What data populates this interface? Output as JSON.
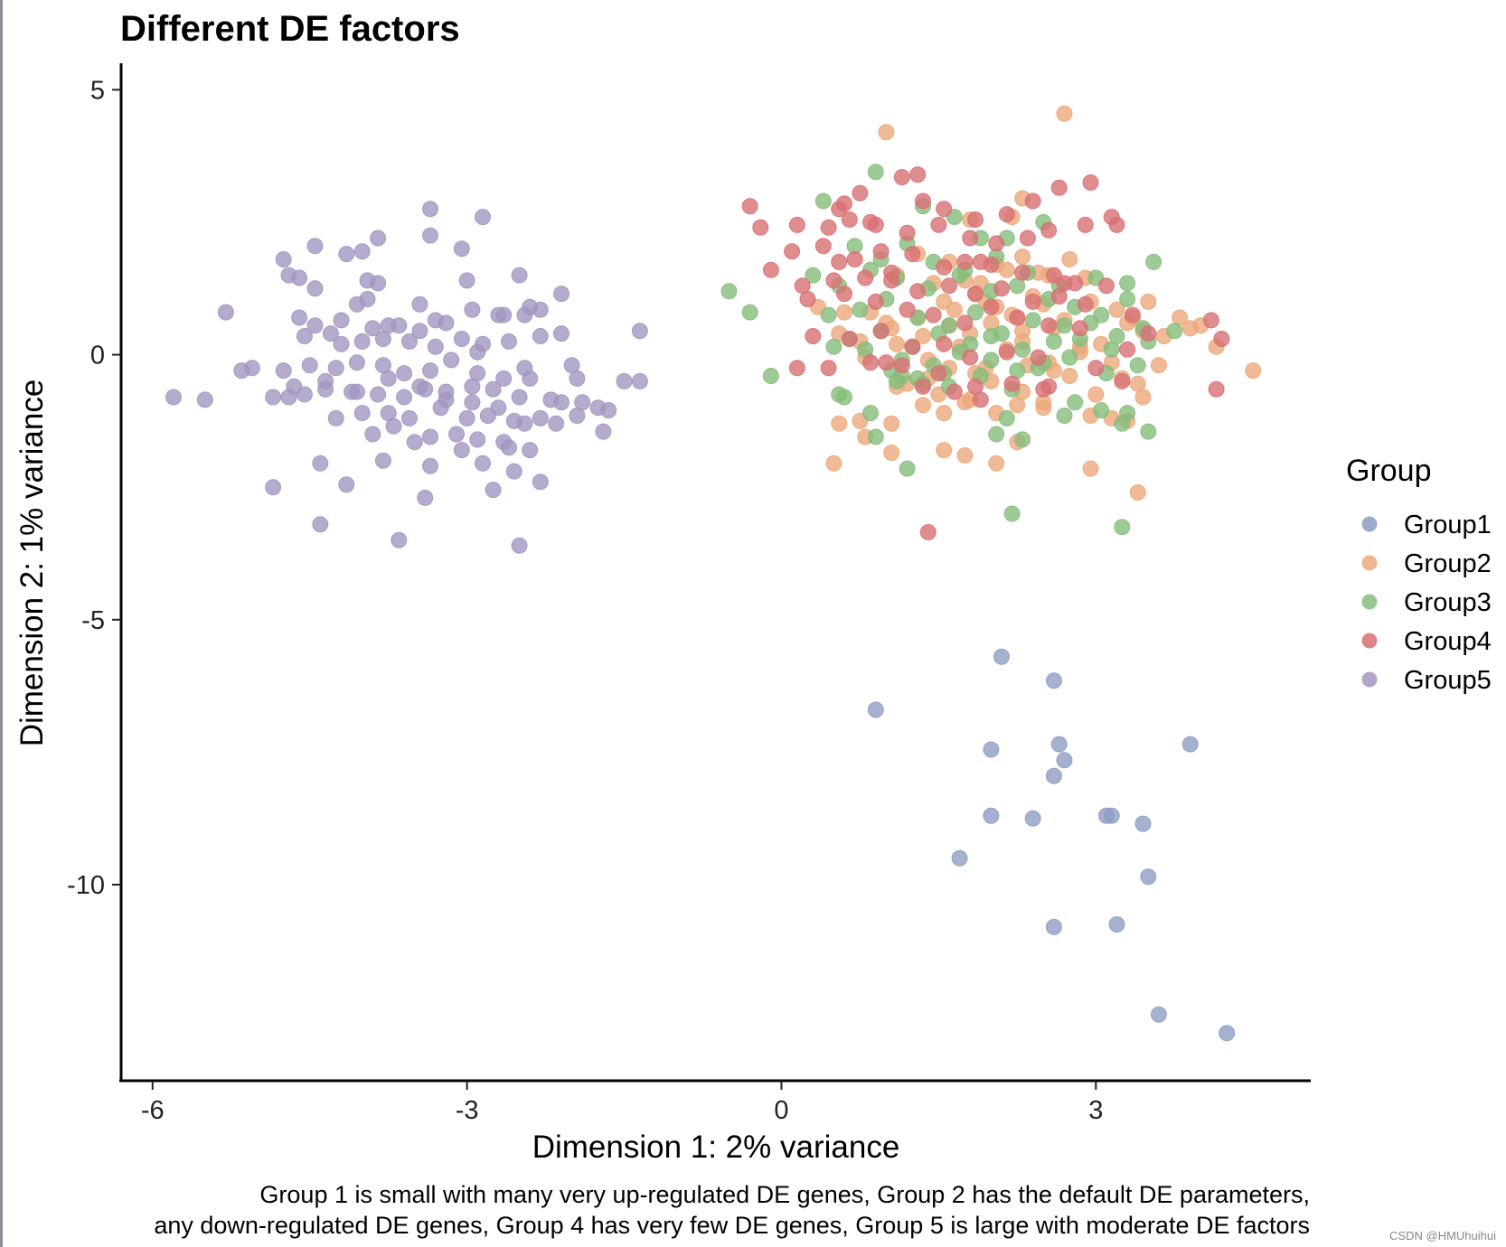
{
  "chart_data": {
    "type": "scatter",
    "title": "Different DE factors",
    "xlabel": "Dimension 1: 2% variance",
    "ylabel": "Dimension 2: 1% variance",
    "xlim": [
      -6.3,
      5.05
    ],
    "ylim": [
      -13.7,
      5.5
    ],
    "xticks": [
      -6,
      -3,
      0,
      3
    ],
    "xtick_labels": [
      "-6",
      "-3",
      "0",
      "3"
    ],
    "yticks": [
      5,
      0,
      -5,
      -10
    ],
    "ytick_labels": [
      "5",
      "0",
      "-5",
      "-10"
    ],
    "grid": false,
    "legend": {
      "title": "Group",
      "position": "right",
      "entries": [
        "Group1",
        "Group2",
        "Group3",
        "Group4",
        "Group5"
      ]
    },
    "colors": {
      "Group1": "#8d9dc3",
      "Group2": "#eba97a",
      "Group3": "#86bd7b",
      "Group4": "#d87074",
      "Group5": "#a396c1"
    },
    "caption_lines": [
      "Group 1 is small with many very up-regulated DE genes, Group 2 has the default DE parameters,",
      "any down-regulated DE genes, Group 4 has very few DE genes, Group 5 is large with moderate DE factors"
    ],
    "series": [
      {
        "name": "Group1",
        "x": [
          2.1,
          2.6,
          0.9,
          2.0,
          2.65,
          2.7,
          3.9,
          2.6,
          2.0,
          2.4,
          3.1,
          3.15,
          3.45,
          1.7,
          3.5,
          2.6,
          3.2,
          3.6,
          4.25
        ],
        "y": [
          -5.7,
          -6.15,
          -6.7,
          -7.45,
          -7.35,
          -7.65,
          -7.35,
          -7.95,
          -8.7,
          -8.75,
          -8.7,
          -8.7,
          -8.85,
          -9.5,
          -9.85,
          -10.8,
          -10.75,
          -12.45,
          -12.8
        ]
      },
      {
        "name": "Group2",
        "x": [
          1.0,
          2.7,
          2.2,
          2.3,
          1.8,
          2.05,
          2.3,
          2.9,
          1.1,
          1.3,
          1.6,
          1.75,
          2.45,
          2.55,
          2.75,
          1.9,
          2.15,
          2.4,
          1.45,
          1.65,
          1.95,
          2.2,
          0.85,
          1.0,
          1.3,
          1.55,
          1.85,
          2.05,
          2.25,
          2.5,
          2.7,
          2.95,
          3.2,
          3.5,
          3.8,
          4.0,
          4.5,
          0.35,
          0.55,
          0.75,
          1.05,
          1.35,
          1.6,
          1.8,
          2.0,
          2.3,
          2.6,
          2.85,
          3.05,
          3.3,
          3.45,
          3.65,
          3.9,
          4.15,
          0.6,
          0.8,
          1.1,
          1.4,
          1.7,
          1.95,
          2.15,
          2.35,
          2.6,
          2.85,
          3.15,
          3.4,
          3.6,
          1.2,
          1.5,
          1.75,
          2.0,
          2.3,
          2.5,
          2.75,
          3.0,
          3.25,
          3.45,
          0.55,
          0.75,
          1.05,
          1.35,
          1.55,
          1.8,
          2.05,
          2.25,
          2.5,
          2.95,
          3.15,
          3.3,
          0.8,
          1.05,
          1.55,
          1.75,
          2.05,
          2.25,
          2.95,
          3.4,
          0.5,
          1.1,
          1.4,
          1.6,
          1.85,
          2.3,
          2.55,
          3.35
        ],
        "y": [
          4.2,
          4.55,
          2.6,
          2.95,
          2.55,
          1.7,
          1.85,
          1.45,
          1.5,
          1.9,
          1.75,
          1.4,
          1.55,
          1.5,
          1.8,
          1.35,
          1.6,
          1.1,
          1.35,
          0.85,
          1.0,
          0.75,
          0.8,
          0.6,
          0.7,
          1.0,
          1.15,
          0.9,
          0.7,
          0.95,
          0.65,
          1.0,
          0.85,
          1.0,
          0.7,
          0.55,
          -0.3,
          0.9,
          0.4,
          0.25,
          0.5,
          0.35,
          0.55,
          0.4,
          0.6,
          0.45,
          0.5,
          0.15,
          0.2,
          0.6,
          0.45,
          0.35,
          0.5,
          0.15,
          0.8,
          -0.05,
          0.2,
          -0.1,
          0.15,
          -0.25,
          0.1,
          -0.2,
          -0.3,
          0.05,
          -0.15,
          -0.55,
          -0.2,
          -0.55,
          -0.75,
          -0.9,
          -0.5,
          -0.7,
          -0.9,
          -0.4,
          -0.75,
          -0.45,
          -0.8,
          -1.3,
          -1.25,
          -1.3,
          -0.95,
          -1.1,
          -0.85,
          -1.1,
          -0.95,
          -1.0,
          -1.15,
          -1.2,
          -1.25,
          -1.55,
          -1.85,
          -1.8,
          -1.9,
          -2.05,
          -1.65,
          -2.15,
          -2.6,
          -2.05,
          -0.6,
          -0.45,
          -0.25,
          -0.35,
          0.25,
          -0.15,
          0.7
        ],
        "outline": false
      },
      {
        "name": "Group3",
        "x": [
          0.9,
          0.4,
          1.35,
          1.65,
          1.9,
          2.15,
          2.5,
          0.7,
          0.95,
          1.2,
          1.45,
          1.75,
          2.05,
          2.35,
          2.65,
          3.0,
          3.3,
          3.55,
          0.3,
          0.55,
          0.85,
          1.1,
          1.4,
          1.7,
          2.0,
          2.25,
          2.55,
          2.8,
          3.05,
          3.3,
          3.75,
          0.45,
          0.75,
          1.0,
          1.3,
          1.6,
          1.85,
          2.1,
          2.4,
          2.7,
          2.95,
          3.2,
          3.45,
          0.65,
          0.95,
          1.25,
          1.5,
          1.8,
          2.0,
          2.3,
          2.6,
          2.85,
          3.15,
          3.5,
          1.15,
          1.45,
          1.7,
          2.0,
          2.25,
          2.5,
          2.75,
          3.1,
          3.4,
          0.5,
          0.8,
          1.05,
          1.3,
          1.6,
          1.9,
          2.2,
          2.45,
          2.8,
          3.05,
          0.6,
          0.85,
          1.1,
          1.35,
          2.15,
          2.7,
          3.25,
          3.5,
          0.9,
          1.2,
          1.55,
          2.05,
          2.3,
          3.3,
          1.15,
          2.2,
          3.25,
          -0.5,
          -0.3,
          -0.1,
          0.55
        ],
        "y": [
          3.45,
          2.9,
          2.8,
          2.6,
          2.2,
          2.2,
          2.5,
          2.05,
          1.8,
          2.1,
          1.75,
          1.6,
          1.85,
          1.55,
          1.3,
          1.45,
          1.35,
          1.75,
          1.5,
          1.3,
          1.6,
          1.45,
          1.25,
          1.5,
          1.2,
          1.3,
          1.05,
          0.9,
          0.75,
          1.05,
          0.45,
          0.75,
          0.85,
          1.05,
          0.7,
          0.55,
          0.8,
          0.4,
          0.65,
          0.55,
          0.6,
          0.35,
          0.5,
          0.3,
          0.45,
          0.15,
          0.4,
          0.2,
          0.35,
          0.1,
          0.25,
          0.3,
          0.1,
          0.25,
          -0.1,
          -0.2,
          0.05,
          -0.1,
          -0.3,
          -0.15,
          -0.05,
          -0.35,
          -0.2,
          0.15,
          0.1,
          -0.3,
          -0.45,
          -0.6,
          -0.4,
          -0.65,
          -0.25,
          -0.9,
          -1.05,
          -0.8,
          -1.1,
          -0.5,
          -0.55,
          -1.2,
          -1.15,
          -1.3,
          -1.45,
          -1.55,
          -2.15,
          -0.35,
          -1.5,
          -1.6,
          -1.1,
          -0.4,
          -3.0,
          -3.25,
          1.2,
          0.8,
          -0.4,
          -0.75
        ],
        "outline": false
      },
      {
        "name": "Group4",
        "x": [
          1.3,
          1.15,
          0.55,
          0.6,
          0.75,
          0.85,
          1.35,
          1.55,
          1.85,
          2.15,
          2.4,
          2.65,
          2.95,
          3.15,
          -0.3,
          -0.2,
          0.15,
          0.45,
          0.65,
          0.9,
          1.2,
          1.5,
          1.8,
          2.05,
          2.35,
          2.55,
          2.9,
          3.2,
          0.1,
          0.4,
          0.7,
          0.95,
          1.25,
          1.55,
          1.75,
          2.0,
          2.3,
          2.6,
          2.8,
          3.1,
          0.2,
          0.5,
          0.8,
          1.05,
          1.3,
          1.6,
          1.85,
          2.1,
          2.4,
          2.65,
          2.9,
          3.35,
          -0.1,
          0.25,
          0.6,
          0.9,
          1.2,
          1.45,
          1.75,
          2.0,
          2.25,
          2.55,
          2.85,
          3.5,
          4.1,
          0.3,
          0.65,
          0.95,
          1.25,
          1.55,
          1.8,
          2.15,
          2.45,
          3.0,
          3.3,
          4.2,
          0.15,
          0.45,
          0.85,
          1.15,
          1.5,
          1.85,
          2.2,
          2.55,
          3.25,
          4.15,
          1.0,
          1.35,
          1.65,
          1.9,
          2.5,
          1.4,
          2.7,
          0.55,
          1.05,
          1.9
        ],
        "y": [
          3.4,
          3.35,
          2.75,
          2.85,
          3.05,
          2.5,
          2.9,
          2.75,
          2.55,
          2.65,
          2.9,
          3.15,
          3.25,
          2.6,
          2.8,
          2.4,
          2.45,
          2.4,
          2.55,
          2.45,
          2.3,
          2.45,
          2.2,
          2.1,
          2.2,
          2.35,
          2.45,
          2.45,
          1.95,
          2.05,
          1.8,
          1.95,
          1.9,
          1.65,
          1.75,
          1.7,
          1.55,
          1.5,
          1.35,
          1.3,
          1.3,
          1.4,
          1.45,
          1.55,
          1.2,
          1.3,
          1.15,
          1.25,
          1.0,
          1.1,
          0.95,
          0.75,
          1.6,
          1.05,
          1.15,
          1.0,
          0.85,
          0.75,
          0.6,
          0.9,
          0.7,
          0.55,
          0.5,
          0.4,
          0.65,
          0.35,
          0.3,
          0.45,
          0.15,
          0.2,
          -0.05,
          0.05,
          -0.05,
          -0.25,
          0.1,
          0.3,
          -0.25,
          -0.25,
          -0.15,
          -0.2,
          -0.35,
          -0.6,
          -0.55,
          -0.6,
          -0.5,
          -0.65,
          -0.15,
          -0.6,
          -0.7,
          -0.85,
          -0.65,
          -3.35,
          1.35,
          1.75,
          1.4,
          1.75
        ],
        "outline": false
      },
      {
        "name": "Group5",
        "x": [
          -3.35,
          -2.85,
          -3.35,
          -3.85,
          -4.15,
          -4.45,
          -4.0,
          -3.05,
          -4.75,
          -4.7,
          -4.6,
          -3.95,
          -3.85,
          -3.0,
          -2.5,
          -2.1,
          -4.45,
          -3.95,
          -4.05,
          -3.45,
          -2.65,
          -2.3,
          -2.4,
          -5.3,
          -4.6,
          -4.45,
          -4.2,
          -3.9,
          -3.65,
          -3.45,
          -3.2,
          -2.95,
          -2.7,
          -2.45,
          -1.35,
          -4.55,
          -4.3,
          -4.0,
          -3.8,
          -3.55,
          -3.3,
          -3.05,
          -2.85,
          -2.6,
          -2.3,
          -2.1,
          -5.05,
          -4.75,
          -4.5,
          -4.25,
          -4.05,
          -3.8,
          -3.6,
          -3.35,
          -3.15,
          -2.9,
          -2.65,
          -2.45,
          -1.95,
          -1.5,
          -1.35,
          -4.7,
          -4.55,
          -4.35,
          -4.1,
          -3.85,
          -3.6,
          -3.4,
          -3.2,
          -2.95,
          -2.75,
          -2.5,
          -2.1,
          -1.75,
          -1.65,
          -4.25,
          -4.0,
          -3.75,
          -3.55,
          -3.25,
          -3.0,
          -2.8,
          -2.55,
          -2.3,
          -1.95,
          -3.7,
          -3.35,
          -3.1,
          -2.9,
          -2.6,
          -2.4,
          -4.4,
          -3.8,
          -3.35,
          -2.85,
          -2.55,
          -4.85,
          -4.15,
          -3.4,
          -2.75,
          -2.3,
          -4.4,
          -3.65,
          -2.5,
          -5.8,
          -5.5,
          -5.15,
          -4.85,
          -4.65,
          -4.35,
          -4.05,
          -3.75,
          -3.45,
          -3.2,
          -2.95,
          -2.7,
          -2.45,
          -2.2,
          -1.9,
          -3.9,
          -3.5,
          -3.05,
          -2.65,
          -2.15,
          -1.7,
          -4.2,
          -3.75,
          -3.3,
          -2.9,
          -2.4,
          -2.0
        ],
        "y": [
          2.75,
          2.6,
          2.25,
          2.2,
          1.9,
          2.05,
          1.95,
          2.0,
          1.8,
          1.5,
          1.45,
          1.4,
          1.35,
          1.4,
          1.5,
          1.15,
          1.25,
          1.05,
          0.95,
          0.95,
          0.75,
          0.85,
          0.9,
          0.8,
          0.7,
          0.55,
          0.65,
          0.5,
          0.55,
          0.45,
          0.6,
          0.85,
          0.75,
          0.75,
          0.45,
          0.35,
          0.4,
          0.25,
          0.3,
          0.25,
          0.15,
          0.3,
          0.2,
          0.25,
          0.35,
          0.4,
          -0.25,
          -0.3,
          -0.2,
          -0.25,
          -0.15,
          -0.2,
          -0.35,
          -0.3,
          -0.1,
          -0.35,
          -0.45,
          -0.25,
          -0.45,
          -0.5,
          -0.5,
          -0.8,
          -0.75,
          -0.65,
          -0.7,
          -0.75,
          -0.8,
          -0.65,
          -0.7,
          -0.6,
          -0.65,
          -0.8,
          -0.9,
          -1.0,
          -1.05,
          -1.2,
          -1.1,
          -1.1,
          -1.2,
          -1.0,
          -1.2,
          -1.15,
          -1.25,
          -1.2,
          -1.15,
          -1.35,
          -1.55,
          -1.5,
          -1.6,
          -1.75,
          -1.8,
          -2.05,
          -2.0,
          -2.1,
          -2.05,
          -2.2,
          -2.5,
          -2.45,
          -2.7,
          -2.55,
          -2.4,
          -3.2,
          -3.5,
          -3.6,
          -0.8,
          -0.85,
          -0.3,
          -0.8,
          -0.6,
          -0.5,
          -0.7,
          -0.45,
          -0.6,
          -0.85,
          -0.9,
          -1.0,
          -1.3,
          -0.85,
          -0.9,
          -1.5,
          -1.65,
          -1.8,
          -1.65,
          -1.3,
          -1.45,
          0.2,
          0.55,
          0.65,
          0.05,
          -0.45,
          -0.2
        ],
        "outline": false
      }
    ]
  },
  "watermark": "CSDN @HMUhuihui"
}
